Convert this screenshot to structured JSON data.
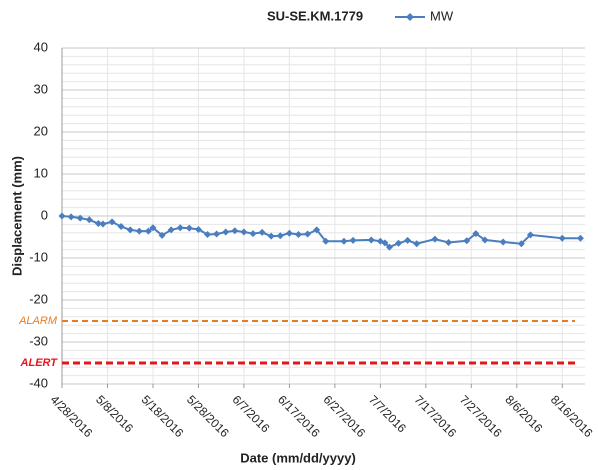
{
  "chart_data": {
    "type": "line",
    "title": "SU-SE.KM.1779",
    "xlabel": "Date (mm/dd/yyyy)",
    "ylabel": "Displacement (mm)",
    "legend": "top",
    "grid": true,
    "xlim": [
      "2016-04-28",
      "2016-08-21"
    ],
    "xticks": [
      {
        "value": "2016-04-28",
        "label": "4/28/2016"
      },
      {
        "value": "2016-05-08",
        "label": "5/8/2016"
      },
      {
        "value": "2016-05-18",
        "label": "5/18/2016"
      },
      {
        "value": "2016-05-28",
        "label": "5/28/2016"
      },
      {
        "value": "2016-06-07",
        "label": "6/7/2016"
      },
      {
        "value": "2016-06-17",
        "label": "6/17/2016"
      },
      {
        "value": "2016-06-27",
        "label": "6/27/2016"
      },
      {
        "value": "2016-07-07",
        "label": "7/7/2016"
      },
      {
        "value": "2016-07-17",
        "label": "7/17/2016"
      },
      {
        "value": "2016-07-27",
        "label": "7/27/2016"
      },
      {
        "value": "2016-08-06",
        "label": "8/6/2016"
      },
      {
        "value": "2016-08-16",
        "label": "8/16/2016"
      }
    ],
    "ylim": [
      -40,
      40
    ],
    "yticks": [
      -40,
      -30,
      -20,
      -10,
      0,
      10,
      20,
      30,
      40
    ],
    "minor_yticks": [
      -38,
      -36,
      -34,
      -32,
      -28,
      -26,
      -24,
      -22,
      -18,
      -16,
      -14,
      -12,
      -8,
      -6,
      -4,
      -2,
      2,
      4,
      6,
      8,
      12,
      14,
      16,
      18,
      22,
      24,
      26,
      28,
      32,
      34,
      36,
      38
    ],
    "x": [
      "2016-04-28",
      "2016-04-30",
      "2016-05-02",
      "2016-05-04",
      "2016-05-06",
      "2016-05-07",
      "2016-05-09",
      "2016-05-11",
      "2016-05-13",
      "2016-05-15",
      "2016-05-17",
      "2016-05-18",
      "2016-05-20",
      "2016-05-22",
      "2016-05-24",
      "2016-05-26",
      "2016-05-28",
      "2016-05-30",
      "2016-06-01",
      "2016-06-03",
      "2016-06-05",
      "2016-06-07",
      "2016-06-09",
      "2016-06-11",
      "2016-06-13",
      "2016-06-15",
      "2016-06-17",
      "2016-06-19",
      "2016-06-21",
      "2016-06-23",
      "2016-06-25",
      "2016-06-29",
      "2016-07-01",
      "2016-07-05",
      "2016-07-07",
      "2016-07-08",
      "2016-07-09",
      "2016-07-11",
      "2016-07-13",
      "2016-07-15",
      "2016-07-19",
      "2016-07-22",
      "2016-07-26",
      "2016-07-28",
      "2016-07-30",
      "2016-08-03",
      "2016-08-07",
      "2016-08-09",
      "2016-08-16",
      "2016-08-20"
    ],
    "series": [
      {
        "name": "MW",
        "color": "#4a7ebf",
        "values": [
          0,
          -0.2,
          -0.5,
          -0.9,
          -1.8,
          -1.9,
          -1.4,
          -2.5,
          -3.3,
          -3.6,
          -3.6,
          -2.8,
          -4.6,
          -3.3,
          -2.8,
          -2.9,
          -3.2,
          -4.4,
          -4.3,
          -3.8,
          -3.5,
          -3.8,
          -4.2,
          -3.9,
          -4.8,
          -4.7,
          -4.1,
          -4.4,
          -4.3,
          -3.3,
          -6.0,
          -6.0,
          -5.8,
          -5.7,
          -6.0,
          -6.4,
          -7.4,
          -6.5,
          -5.8,
          -6.6,
          -5.5,
          -6.3,
          -5.9,
          -4.2,
          -5.7,
          -6.2,
          -6.6,
          -4.5,
          -5.3,
          -5.3
        ]
      }
    ],
    "thresholds": [
      {
        "label": "ALARM",
        "value": -25,
        "color": "#e87d1e"
      },
      {
        "label": "ALERT",
        "value": -35,
        "color": "#e8141c"
      }
    ]
  }
}
